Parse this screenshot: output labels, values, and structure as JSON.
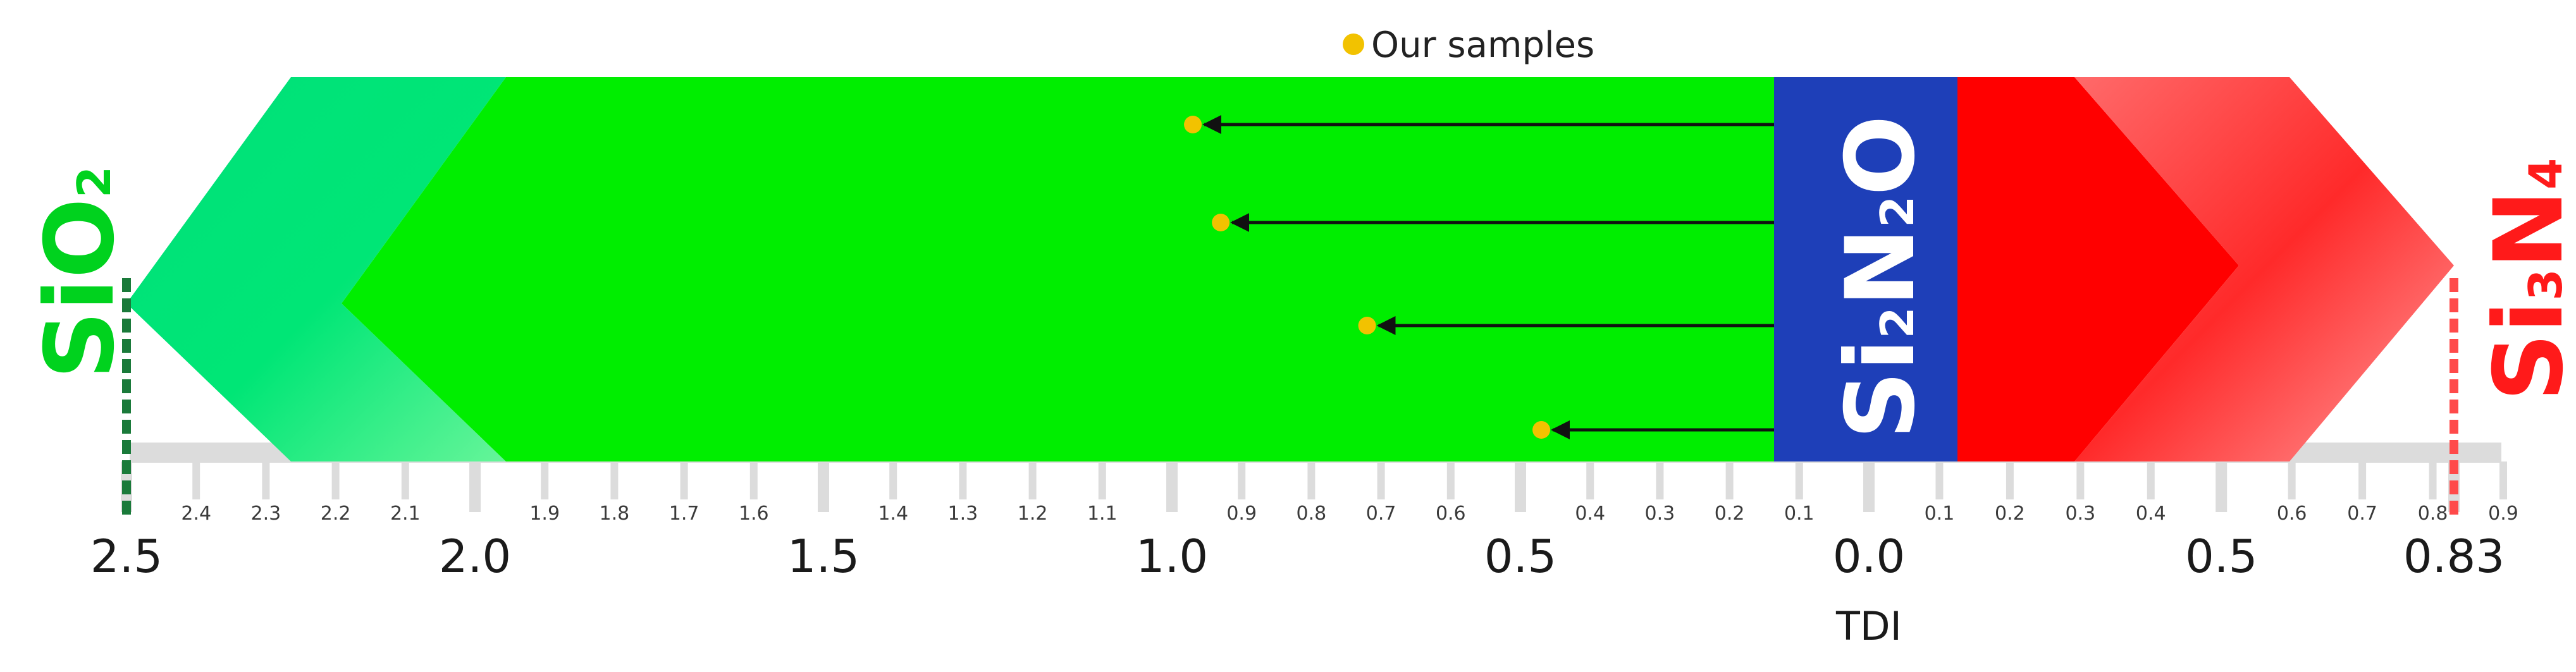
{
  "legend": {
    "label": "Our samples",
    "marker_color": "#f2c200"
  },
  "axis": {
    "title": "TDI",
    "major_left": [
      {
        "value": 2.5,
        "label": "2.5"
      },
      {
        "value": 2.0,
        "label": "2.0"
      },
      {
        "value": 1.5,
        "label": "1.5"
      },
      {
        "value": 1.0,
        "label": "1.0"
      },
      {
        "value": 0.5,
        "label": "0.5"
      },
      {
        "value": 0.0,
        "label": "0.0"
      }
    ],
    "major_right": [
      {
        "value": 0.5,
        "label": "0.5"
      },
      {
        "value": 0.83,
        "label": "0.83"
      }
    ],
    "minor_left": [
      {
        "value": 2.4,
        "label": "2.4"
      },
      {
        "value": 2.3,
        "label": "2.3"
      },
      {
        "value": 2.2,
        "label": "2.2"
      },
      {
        "value": 2.1,
        "label": "2.1"
      },
      {
        "value": 1.9,
        "label": "1.9"
      },
      {
        "value": 1.8,
        "label": "1.8"
      },
      {
        "value": 1.7,
        "label": "1.7"
      },
      {
        "value": 1.6,
        "label": "1.6"
      },
      {
        "value": 1.4,
        "label": "1.4"
      },
      {
        "value": 1.3,
        "label": "1.3"
      },
      {
        "value": 1.2,
        "label": "1.2"
      },
      {
        "value": 1.1,
        "label": "1.1"
      },
      {
        "value": 0.9,
        "label": "0.9"
      },
      {
        "value": 0.8,
        "label": "0.8"
      },
      {
        "value": 0.7,
        "label": "0.7"
      },
      {
        "value": 0.6,
        "label": "0.6"
      },
      {
        "value": 0.4,
        "label": "0.4"
      },
      {
        "value": 0.3,
        "label": "0.3"
      },
      {
        "value": 0.2,
        "label": "0.2"
      },
      {
        "value": 0.1,
        "label": "0.1"
      }
    ],
    "minor_right": [
      {
        "value": 0.1,
        "label": "0.1"
      },
      {
        "value": 0.2,
        "label": "0.2"
      },
      {
        "value": 0.3,
        "label": "0.3"
      },
      {
        "value": 0.4,
        "label": "0.4"
      },
      {
        "value": 0.6,
        "label": "0.6"
      },
      {
        "value": 0.7,
        "label": "0.7"
      },
      {
        "value": 0.8,
        "label": "0.8"
      },
      {
        "value": 0.9,
        "label": "0.9"
      }
    ]
  },
  "end_labels": {
    "left": {
      "base1": "Si",
      "base2": "O",
      "sub": "2",
      "color": "#00d21e",
      "value": 2.5
    },
    "right": {
      "base1": "Si",
      "sub1": "3",
      "base2": "N",
      "sub2": "4",
      "color": "#ff1a1a",
      "value": 0.83
    }
  },
  "center_label": {
    "base1": "Si",
    "sub1": "2",
    "base2": "N",
    "sub2": "2",
    "base3": "O",
    "color": "#1e3fb8"
  },
  "samples": [
    {
      "tdi": 0.97
    },
    {
      "tdi": 0.93
    },
    {
      "tdi": 0.72
    },
    {
      "tdi": 0.47
    }
  ],
  "colors": {
    "green": "#00ee00",
    "green_light": "#00e676",
    "red": "#ff0000",
    "blue": "#1e3fb8",
    "ruler": "#dcdcdc"
  }
}
